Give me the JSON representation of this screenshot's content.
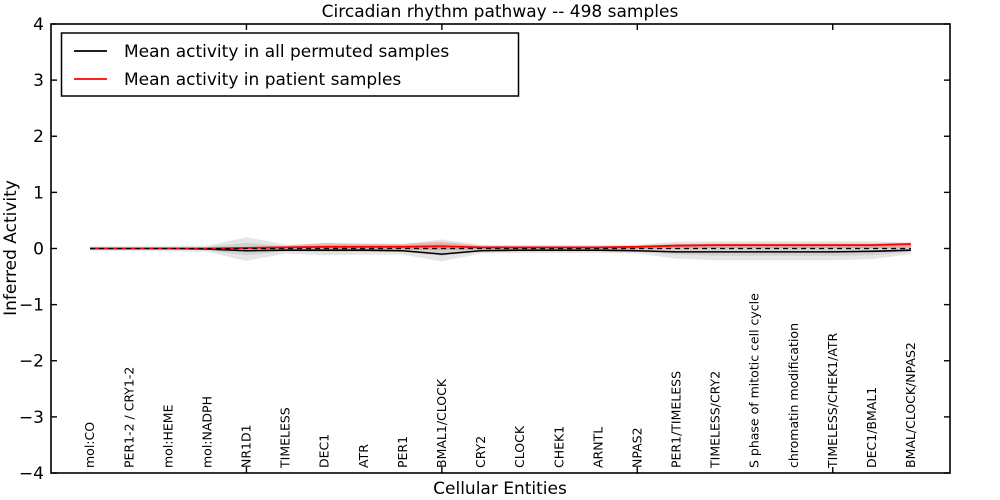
{
  "chart_data": {
    "type": "line",
    "title": "Circadian rhythm pathway -- 498 samples",
    "xlabel": "Cellular Entities",
    "ylabel": "Inferred Activity",
    "xlim": [
      0,
      23
    ],
    "ylim": [
      -4,
      4
    ],
    "yticks": [
      4,
      3,
      2,
      1,
      0,
      -1,
      -2,
      -3,
      -4
    ],
    "ytick_labels": [
      "4",
      "3",
      "2",
      "1",
      "0",
      "−1",
      "−2",
      "−3",
      "−4"
    ],
    "xtick_major": [
      5,
      10,
      15,
      20
    ],
    "x": [
      1,
      2,
      3,
      4,
      5,
      6,
      7,
      8,
      9,
      10,
      11,
      12,
      13,
      14,
      15,
      16,
      17,
      18,
      19,
      20,
      21,
      22
    ],
    "categories": [
      "mol:CO",
      "PER1-2 / CRY1-2",
      "mol:HEME",
      "mol:NADPH",
      "NR1D1",
      "TIMELESS",
      "DEC1",
      "ATR",
      "PER1",
      "BMAL1/CLOCK",
      "CRY2",
      "CLOCK",
      "CHEK1",
      "ARNTL",
      "NPAS2",
      "PER1/TIMELESS",
      "TIMELESS/CRY2",
      "S phase of mitotic cell cycle",
      "chromatin modification",
      "TIMELESS/CHEK1/ATR",
      "DEC1/BMAL1",
      "BMAL/CLOCK/NPAS2"
    ],
    "series": [
      {
        "id": "permuted",
        "name": "Mean activity in all permuted samples",
        "color": "#000000",
        "width": 1.6,
        "values": [
          0.0,
          0.0,
          0.0,
          -0.01,
          -0.04,
          -0.03,
          -0.03,
          -0.03,
          -0.04,
          -0.1,
          -0.04,
          -0.03,
          -0.03,
          -0.03,
          -0.04,
          -0.06,
          -0.06,
          -0.06,
          -0.06,
          -0.06,
          -0.05,
          -0.03
        ]
      },
      {
        "id": "patient",
        "name": "Mean activity in patient samples",
        "color": "#ff0000",
        "width": 1.8,
        "values": [
          0.0,
          0.0,
          0.0,
          0.0,
          0.01,
          0.02,
          0.03,
          0.03,
          0.03,
          0.04,
          0.02,
          0.02,
          0.02,
          0.02,
          0.03,
          0.05,
          0.06,
          0.06,
          0.06,
          0.06,
          0.06,
          0.08
        ]
      }
    ],
    "zero_line": {
      "color": "#000000",
      "style": "dashed",
      "value": 0
    },
    "bands": [
      {
        "name": "permuted-range-outer",
        "color": "rgba(0,0,0,0.10)",
        "upper": [
          0.04,
          0.04,
          0.04,
          0.05,
          0.2,
          0.07,
          0.09,
          0.08,
          0.08,
          0.16,
          0.07,
          0.06,
          0.06,
          0.06,
          0.07,
          0.12,
          0.13,
          0.13,
          0.13,
          0.13,
          0.13,
          0.1
        ],
        "lower": [
          -0.04,
          -0.04,
          -0.05,
          -0.06,
          -0.22,
          -0.09,
          -0.12,
          -0.11,
          -0.11,
          -0.23,
          -0.09,
          -0.08,
          -0.08,
          -0.08,
          -0.09,
          -0.18,
          -0.21,
          -0.21,
          -0.21,
          -0.21,
          -0.19,
          -0.1
        ]
      },
      {
        "name": "permuted-range-inner",
        "color": "rgba(0,0,0,0.09)",
        "upper": [
          0.02,
          0.02,
          0.02,
          0.03,
          0.1,
          0.04,
          0.05,
          0.05,
          0.05,
          0.08,
          0.04,
          0.04,
          0.04,
          0.04,
          0.04,
          0.08,
          0.08,
          0.08,
          0.08,
          0.08,
          0.08,
          0.06
        ],
        "lower": [
          -0.02,
          -0.02,
          -0.02,
          -0.03,
          -0.12,
          -0.05,
          -0.07,
          -0.06,
          -0.06,
          -0.13,
          -0.05,
          -0.05,
          -0.05,
          -0.05,
          -0.06,
          -0.11,
          -0.13,
          -0.13,
          -0.13,
          -0.13,
          -0.12,
          -0.06
        ]
      },
      {
        "name": "patient-range",
        "color": "rgba(255,0,0,0.20)",
        "upper": [
          0.01,
          0.01,
          0.01,
          0.01,
          0.03,
          0.05,
          0.1,
          0.09,
          0.08,
          0.12,
          0.05,
          0.04,
          0.04,
          0.04,
          0.05,
          0.08,
          0.09,
          0.09,
          0.09,
          0.09,
          0.09,
          0.11
        ],
        "lower": [
          -0.01,
          -0.01,
          -0.01,
          -0.01,
          -0.02,
          -0.02,
          -0.02,
          -0.02,
          -0.02,
          -0.03,
          -0.02,
          -0.01,
          -0.01,
          -0.01,
          -0.01,
          0.0,
          0.01,
          0.01,
          0.01,
          0.01,
          0.01,
          0.02
        ]
      }
    ],
    "legend": {
      "position": "upper left"
    }
  }
}
